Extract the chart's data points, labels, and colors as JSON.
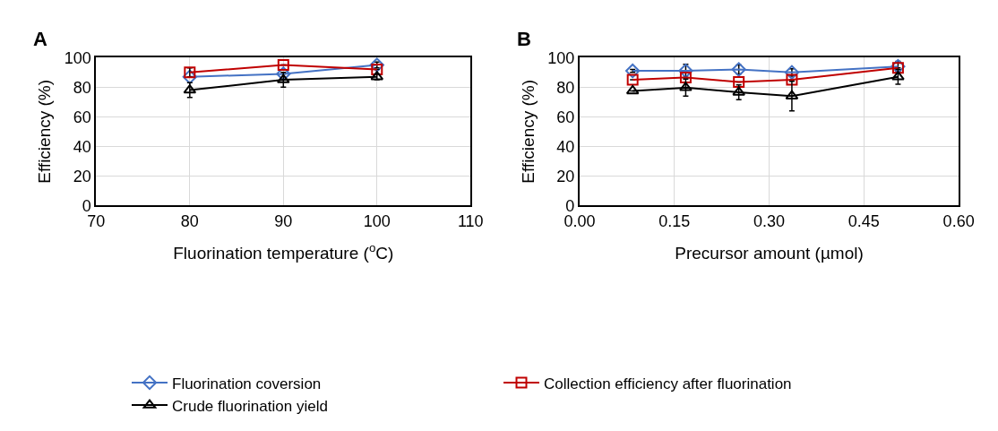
{
  "chart_data": [
    {
      "type": "line",
      "title": "A",
      "xlabel": "Fluorination temperature ($^{o}$C)",
      "ylabel": "Efficiency (%)",
      "x": [
        80,
        90,
        100
      ],
      "xlim": [
        70,
        110
      ],
      "xticks": [
        70,
        80,
        90,
        100,
        110
      ],
      "ylim": [
        0,
        100
      ],
      "yticks": [
        0,
        20,
        40,
        60,
        80,
        100
      ],
      "grid": true,
      "legend": "bottom",
      "series": [
        {
          "name": "Fluorination coversion",
          "color": "#4472c4",
          "marker": "diamond",
          "values": [
            87,
            89,
            95
          ],
          "errors": [
            null,
            null,
            2
          ]
        },
        {
          "name": "Collection efficiency after fluorination",
          "color": "#c00000",
          "marker": "square",
          "values": [
            90,
            95,
            92
          ],
          "errors": [
            3,
            null,
            null
          ]
        },
        {
          "name": "Crude fluorination yield",
          "color": "#000000",
          "marker": "triangle",
          "values": [
            78,
            85,
            87
          ],
          "errors": [
            5,
            5,
            2
          ]
        }
      ]
    },
    {
      "type": "line",
      "title": "B",
      "xlabel": "Precursor amount (µmol)",
      "ylabel": "Efficiency (%)",
      "x": [
        0.084,
        0.168,
        0.252,
        0.336,
        0.504
      ],
      "xlim": [
        0,
        0.6
      ],
      "xticks": [
        {
          "value": 0,
          "label": "0.00"
        },
        0.15,
        {
          "value": 0.3,
          "label": "0.30"
        },
        0.45,
        {
          "value": 0.6,
          "label": "0.60"
        }
      ],
      "ylim": [
        0,
        100
      ],
      "yticks": [
        0,
        20,
        40,
        60,
        80,
        100
      ],
      "grid": true,
      "series": [
        {
          "color": "#4472c4",
          "marker": "diamond",
          "values": [
            91,
            91,
            92,
            90,
            94
          ],
          "errors": [
            1,
            4.5,
            3,
            2.5,
            3.5
          ]
        },
        {
          "color": "#c00000",
          "marker": "square",
          "values": [
            85,
            86.5,
            83.5,
            85,
            93
          ],
          "errors": [
            null,
            null,
            null,
            null,
            null
          ]
        },
        {
          "color": "#000000",
          "marker": "triangle",
          "values": [
            77.5,
            79.7,
            76.6,
            74,
            87
          ],
          "errors": [
            null,
            5.7,
            5,
            10,
            5
          ]
        }
      ]
    }
  ]
}
